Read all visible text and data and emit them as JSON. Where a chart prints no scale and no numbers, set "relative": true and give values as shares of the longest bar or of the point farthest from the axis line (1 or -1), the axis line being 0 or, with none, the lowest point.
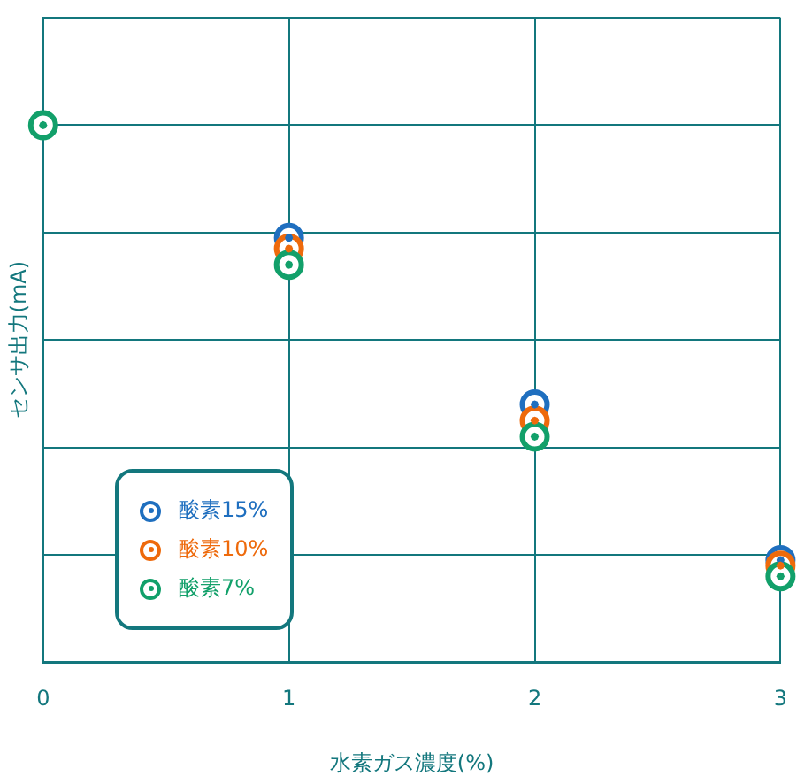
{
  "chart_data": {
    "type": "scatter",
    "xlabel": "水素ガス濃度(%)",
    "ylabel": "センサ出力(mA)",
    "x": [
      0,
      1,
      2,
      3
    ],
    "xlim": [
      0,
      3
    ],
    "xticks": [
      0,
      1,
      2,
      3
    ],
    "relative": true,
    "grid": true,
    "legend": "bottom left",
    "marker": "circle",
    "series": [
      {
        "name": "酸素15%",
        "color": "#1f6fbf",
        "values": [
          null,
          0.79,
          0.48,
          0.19
        ]
      },
      {
        "name": "酸素10%",
        "color": "#ee6a0c",
        "values": [
          null,
          0.77,
          0.45,
          0.18
        ]
      },
      {
        "name": "酸素7%",
        "color": "#12a06a",
        "values": [
          1,
          0.74,
          0.42,
          0.16
        ]
      }
    ]
  }
}
